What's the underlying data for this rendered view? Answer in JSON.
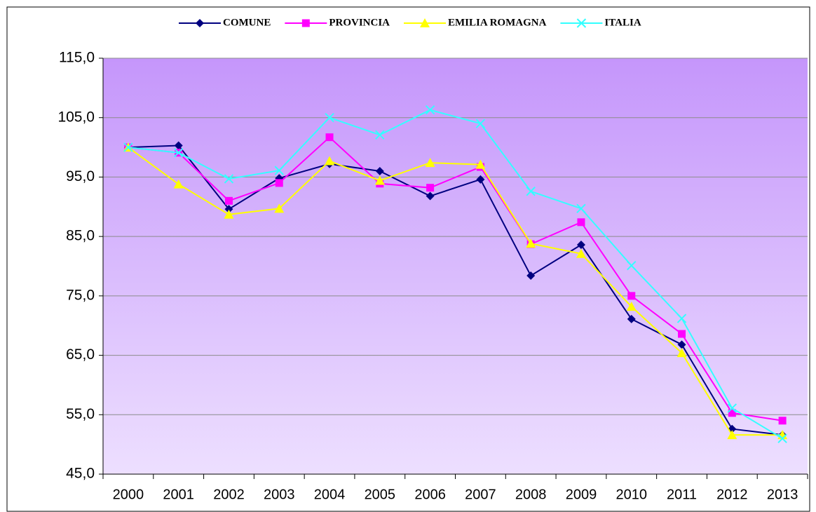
{
  "chart_data": {
    "type": "line",
    "categories": [
      "2000",
      "2001",
      "2002",
      "2003",
      "2004",
      "2005",
      "2006",
      "2007",
      "2008",
      "2009",
      "2010",
      "2011",
      "2012",
      "2013"
    ],
    "series": [
      {
        "name": "COMUNE",
        "color": "#000080",
        "marker": "diamond",
        "values": [
          100.0,
          100.3,
          89.6,
          94.8,
          97.2,
          96.0,
          91.8,
          94.6,
          78.4,
          83.6,
          71.1,
          66.8,
          52.6,
          51.6
        ]
      },
      {
        "name": "PROVINCIA",
        "color": "#ff00ff",
        "marker": "square",
        "values": [
          100.0,
          99.1,
          91.0,
          94.0,
          101.7,
          93.9,
          93.2,
          96.7,
          83.7,
          87.4,
          75.0,
          68.6,
          55.3,
          54.0
        ]
      },
      {
        "name": "EMILIA ROMAGNA",
        "color": "#ffff00",
        "marker": "triangle",
        "values": [
          100.0,
          93.8,
          88.7,
          89.7,
          97.7,
          94.4,
          97.4,
          97.1,
          83.8,
          82.1,
          73.2,
          65.4,
          51.6,
          51.6
        ]
      },
      {
        "name": "ITALIA",
        "color": "#33ffff",
        "marker": "x",
        "values": [
          100.0,
          99.1,
          94.7,
          96.1,
          105.0,
          102.1,
          106.3,
          104.0,
          92.6,
          89.7,
          80.1,
          71.2,
          56.1,
          51.0
        ]
      }
    ],
    "ylim": [
      45,
      115
    ],
    "yticks": [
      {
        "value": 45,
        "label": "45,0"
      },
      {
        "value": 55,
        "label": "55,0"
      },
      {
        "value": 65,
        "label": "65,0"
      },
      {
        "value": 75,
        "label": "75,0"
      },
      {
        "value": 85,
        "label": "85,0"
      },
      {
        "value": 95,
        "label": "95,0"
      },
      {
        "value": 105,
        "label": "105,0"
      },
      {
        "value": 115,
        "label": "115,0"
      }
    ],
    "grid": true,
    "legend": "top"
  }
}
